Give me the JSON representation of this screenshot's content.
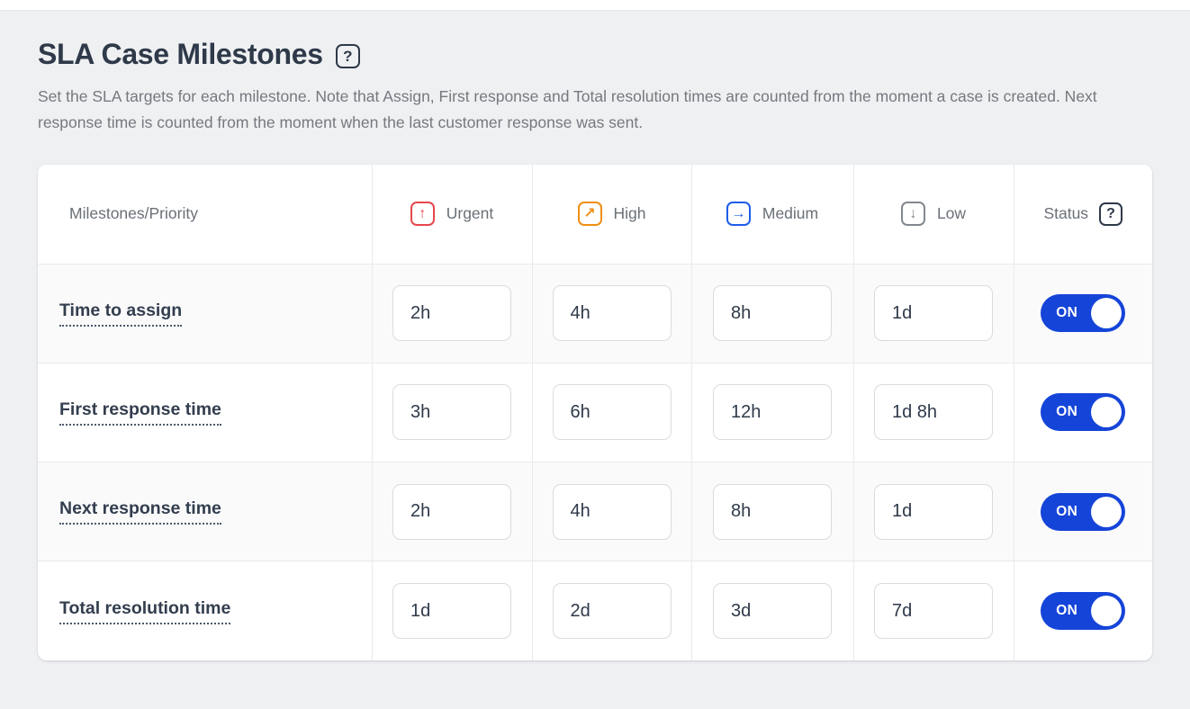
{
  "page": {
    "title": "SLA Case Milestones",
    "help_glyph": "?",
    "description": "Set the SLA targets for each milestone. Note that Assign, First response and Total resolution times are counted from the moment a case is created. Next response time is counted from the moment when the last customer response was sent."
  },
  "table": {
    "columns": {
      "milestones": "Milestones/Priority",
      "status": "Status",
      "status_help_glyph": "?",
      "priorities": [
        {
          "label": "Urgent",
          "icon": "priority-urgent-arrow-up-icon",
          "glyph": "↑",
          "color": "#e5484d"
        },
        {
          "label": "High",
          "icon": "priority-high-arrow-up-right-icon",
          "glyph": "↗",
          "color": "#ef8e13"
        },
        {
          "label": "Medium",
          "icon": "priority-medium-arrow-right-icon",
          "glyph": "→",
          "color": "#1d5de8"
        },
        {
          "label": "Low",
          "icon": "priority-low-arrow-down-icon",
          "glyph": "↓",
          "color": "#82878f"
        }
      ]
    },
    "rows": [
      {
        "milestone": "Time to assign",
        "values": [
          "2h",
          "4h",
          "8h",
          "1d"
        ],
        "status": "ON"
      },
      {
        "milestone": "First response time",
        "values": [
          "3h",
          "6h",
          "12h",
          "1d 8h"
        ],
        "status": "ON"
      },
      {
        "milestone": "Next response time",
        "values": [
          "2h",
          "4h",
          "8h",
          "1d"
        ],
        "status": "ON"
      },
      {
        "milestone": "Total resolution time",
        "values": [
          "1d",
          "2d",
          "3d",
          "7d"
        ],
        "status": "ON"
      }
    ]
  },
  "colors": {
    "toggle_on": "#1544d8",
    "urgent": "#e5484d",
    "high": "#ef8e13",
    "medium": "#1d5de8",
    "low": "#82878f"
  }
}
